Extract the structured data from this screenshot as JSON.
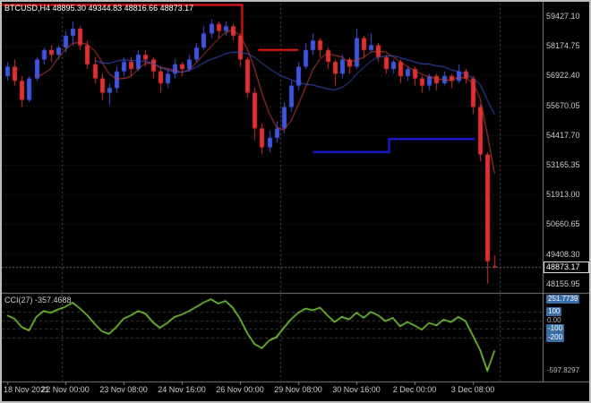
{
  "header": {
    "symbol": "BTCUSD",
    "period": "H4",
    "open": "48895.30",
    "high": "49344.83",
    "low": "48816.66",
    "close": "48873.17",
    "text": "BTCUSD,H4 48895.30 49344.83 48816.66 48873.17"
  },
  "cci": {
    "name": "CCI",
    "period": 27,
    "value": "-357.4688",
    "text": "CCI(27) -357.4688"
  },
  "chart_data": {
    "type": "candlestick",
    "symbol": "BTCUSD",
    "timeframe": "H4",
    "current_price": "48873.17",
    "price_ticks": [
      "59427.10",
      "58174.75",
      "56922.40",
      "55670.05",
      "54417.70",
      "53165.35",
      "51913.00",
      "50660.65",
      "49408.30",
      "48155.95"
    ],
    "time_labels": [
      {
        "index": 0,
        "text": "18 Nov 2021"
      },
      {
        "index": 8,
        "text": "22 Nov 00:00"
      },
      {
        "index": 16,
        "text": "23 Nov 08:00"
      },
      {
        "index": 24,
        "text": "24 Nov 16:00"
      },
      {
        "index": 32,
        "text": "26 Nov 00:00"
      },
      {
        "index": 40,
        "text": "29 Nov 08:00"
      },
      {
        "index": 48,
        "text": "30 Nov 16:00"
      },
      {
        "index": 56,
        "text": "2 Dec 00:00"
      },
      {
        "index": 64,
        "text": "3 Dec 08:00"
      }
    ],
    "separators": [
      7.5,
      37.5,
      67.7
    ],
    "candles": [
      [
        56900,
        57500,
        56700,
        57300
      ],
      [
        57300,
        57600,
        56500,
        56700
      ],
      [
        56700,
        56900,
        55600,
        55900
      ],
      [
        55900,
        56900,
        55800,
        56800
      ],
      [
        56800,
        57700,
        56700,
        57600
      ],
      [
        57600,
        58100,
        57400,
        58000
      ],
      [
        58000,
        58200,
        57500,
        57800
      ],
      [
        57800,
        58200,
        57600,
        58100
      ],
      [
        58100,
        58800,
        57900,
        58600
      ],
      [
        58600,
        59200,
        58200,
        58900
      ],
      [
        58900,
        59000,
        58000,
        58200
      ],
      [
        58200,
        58400,
        57200,
        57400
      ],
      [
        57400,
        57700,
        56600,
        56800
      ],
      [
        56800,
        57000,
        55900,
        56200
      ],
      [
        56200,
        56600,
        55700,
        56400
      ],
      [
        56400,
        57300,
        56200,
        57100
      ],
      [
        57100,
        57700,
        56900,
        57500
      ],
      [
        57500,
        57700,
        56900,
        57200
      ],
      [
        57200,
        58000,
        57100,
        57800
      ],
      [
        57800,
        58000,
        57300,
        57600
      ],
      [
        57600,
        57700,
        56800,
        57100
      ],
      [
        57100,
        57300,
        56200,
        56600
      ],
      [
        56600,
        57200,
        56400,
        57000
      ],
      [
        57000,
        57600,
        56800,
        57400
      ],
      [
        57400,
        57500,
        56900,
        57200
      ],
      [
        57200,
        57800,
        57100,
        57600
      ],
      [
        57600,
        58300,
        57500,
        58100
      ],
      [
        58100,
        59000,
        58000,
        58700
      ],
      [
        58700,
        59300,
        58500,
        59100
      ],
      [
        59100,
        59200,
        58500,
        58800
      ],
      [
        58800,
        59200,
        58600,
        59000
      ],
      [
        59000,
        59100,
        58400,
        58600
      ],
      [
        58600,
        58700,
        57300,
        57600
      ],
      [
        57600,
        57700,
        56000,
        56200
      ],
      [
        56200,
        56400,
        54200,
        54700
      ],
      [
        54700,
        54900,
        53600,
        53900
      ],
      [
        53900,
        54600,
        53700,
        54300
      ],
      [
        54300,
        55000,
        54100,
        54700
      ],
      [
        54700,
        55800,
        54500,
        55600
      ],
      [
        55600,
        56700,
        55400,
        56500
      ],
      [
        56500,
        57500,
        56300,
        57300
      ],
      [
        57300,
        58300,
        57200,
        58000
      ],
      [
        58000,
        58700,
        57800,
        58400
      ],
      [
        58400,
        58500,
        57700,
        58000
      ],
      [
        58000,
        58100,
        57200,
        57500
      ],
      [
        57500,
        57600,
        56500,
        57000
      ],
      [
        57000,
        57800,
        56800,
        57600
      ],
      [
        57600,
        57700,
        57000,
        57300
      ],
      [
        57300,
        58900,
        57200,
        58500
      ],
      [
        58500,
        58600,
        57700,
        58000
      ],
      [
        58000,
        58700,
        57900,
        58200
      ],
      [
        58200,
        58300,
        57500,
        57700
      ],
      [
        57700,
        57800,
        57000,
        57200
      ],
      [
        57200,
        57600,
        57000,
        57500
      ],
      [
        57500,
        57600,
        56600,
        56900
      ],
      [
        56900,
        57300,
        56700,
        57200
      ],
      [
        57200,
        57300,
        56500,
        56800
      ],
      [
        56800,
        56900,
        56200,
        56500
      ],
      [
        56500,
        57000,
        56300,
        56900
      ],
      [
        56900,
        57000,
        56300,
        56600
      ],
      [
        56600,
        57100,
        56500,
        56900
      ],
      [
        56900,
        57000,
        56400,
        56700
      ],
      [
        56700,
        57400,
        56600,
        57100
      ],
      [
        57100,
        57200,
        56600,
        56800
      ],
      [
        56800,
        56900,
        55300,
        55600
      ],
      [
        55600,
        55700,
        53300,
        53600
      ],
      [
        53600,
        53700,
        48155.95,
        49100
      ],
      [
        48895.3,
        49344.83,
        48816.66,
        48873.17
      ]
    ],
    "ma_overlays": [
      {
        "name": "ma-fast",
        "period": 5,
        "color_key": "ma_fast"
      },
      {
        "name": "ma-slow",
        "period": 13,
        "color_key": "ma_slow"
      }
    ],
    "object_lines": [
      {
        "name": "resistance-line-upper",
        "color_key": "overlay_red",
        "width": 2,
        "points": [
          [
            -0.7,
            59900
          ],
          [
            32.3,
            59900
          ],
          [
            32.3,
            58000
          ]
        ]
      },
      {
        "name": "resistance-line-mid",
        "color_key": "overlay_red",
        "width": 2,
        "points": [
          [
            34.5,
            58000
          ],
          [
            40,
            58000
          ]
        ]
      },
      {
        "name": "support-line-step",
        "color_key": "overlay_blue",
        "width": 2,
        "points": [
          [
            42,
            53700
          ],
          [
            52.5,
            53700
          ],
          [
            52.5,
            54250
          ],
          [
            64.3,
            54250
          ]
        ]
      }
    ],
    "cci_panel": {
      "label": "CCI(27)",
      "current": -357.4688,
      "max": "251.7739",
      "min": "-597.8297",
      "levels": [
        100,
        0,
        -100,
        -200
      ],
      "scale_marks": [
        {
          "value": 251.7739,
          "text": "251.7739",
          "boxed": true
        },
        {
          "value": 100,
          "text": "100",
          "boxed": true
        },
        {
          "value": 0,
          "text": "0.00",
          "boxed": false
        },
        {
          "value": -100,
          "text": "-100",
          "boxed": true
        },
        {
          "value": -200,
          "text": "-200",
          "boxed": true
        },
        {
          "value": -597.8297,
          "text": "-597.8297",
          "boxed": false
        }
      ],
      "values": [
        60,
        20,
        -80,
        -120,
        40,
        110,
        90,
        130,
        160,
        210,
        140,
        60,
        -40,
        -130,
        -160,
        -80,
        20,
        60,
        110,
        80,
        -20,
        -90,
        -30,
        40,
        70,
        110,
        160,
        210,
        251.7739,
        200,
        230,
        150,
        20,
        -150,
        -280,
        -330,
        -240,
        -200,
        -90,
        10,
        90,
        140,
        120,
        150,
        60,
        -20,
        40,
        10,
        90,
        30,
        100,
        60,
        -10,
        30,
        -70,
        -20,
        -60,
        -110,
        -30,
        -60,
        10,
        -20,
        40,
        -10,
        -180,
        -350,
        -597.8297,
        -357.4688
      ]
    }
  },
  "colors": {
    "background": "#000000",
    "bull": "#3f55e0",
    "bear": "#e03030",
    "ma_fast": "#c84040",
    "ma_slow": "#3c50c8",
    "overlay_red": "#ff1a1a",
    "overlay_blue": "#2020ff",
    "cci_line": "#82e03a",
    "grid": "#2e2e2e",
    "cci_level_line": "#3c3c3c",
    "separator": "#505050",
    "bid_line": "#777777",
    "frame": "#808080",
    "axis_text": "#cccccc",
    "level_box_bg": "#3a6ea5"
  }
}
